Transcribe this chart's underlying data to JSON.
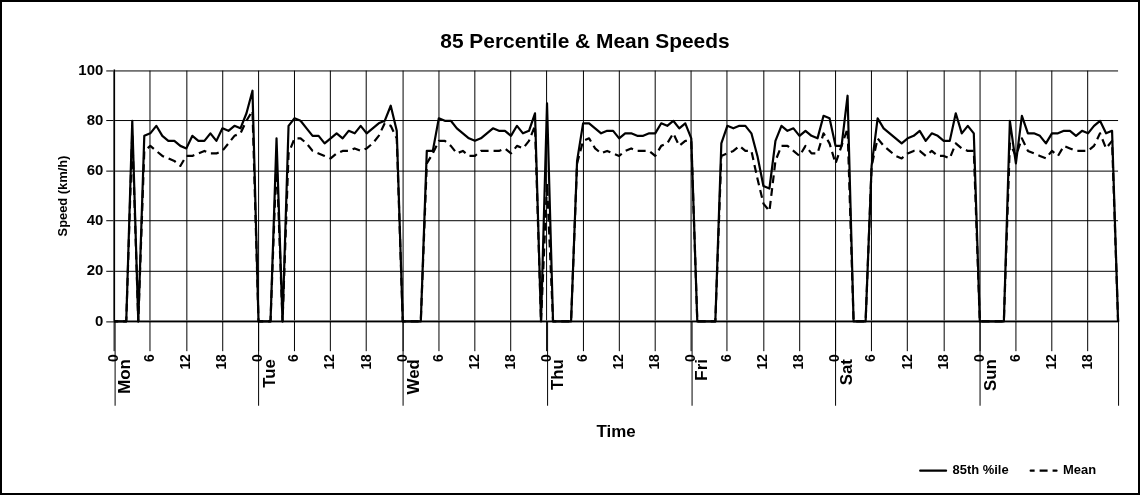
{
  "chart_data": {
    "type": "line",
    "title": "85 Percentile & Mean Speeds",
    "xlabel": "Time",
    "ylabel": "Speed (km/h)",
    "categories": [
      "0",
      null,
      null,
      null,
      null,
      null,
      "6",
      null,
      null,
      null,
      null,
      null,
      "12",
      null,
      null,
      null,
      null,
      null,
      "18",
      null,
      null,
      null,
      null,
      null,
      "0",
      null,
      null,
      null,
      null,
      null,
      "6",
      null,
      null,
      null,
      null,
      null,
      "12",
      null,
      null,
      null,
      null,
      null,
      "18",
      null,
      null,
      null,
      null,
      null,
      "0",
      null,
      null,
      null,
      null,
      null,
      "6",
      null,
      null,
      null,
      null,
      null,
      "12",
      null,
      null,
      null,
      null,
      null,
      "18",
      null,
      null,
      null,
      null,
      null,
      "0",
      null,
      null,
      null,
      null,
      null,
      "6",
      null,
      null,
      null,
      null,
      null,
      "12",
      null,
      null,
      null,
      null,
      null,
      "18",
      null,
      null,
      null,
      null,
      null,
      "0",
      null,
      null,
      null,
      null,
      null,
      "6",
      null,
      null,
      null,
      null,
      null,
      "12",
      null,
      null,
      null,
      null,
      null,
      "18",
      null,
      null,
      null,
      null,
      null,
      "0",
      null,
      null,
      null,
      null,
      null,
      "6",
      null,
      null,
      null,
      null,
      null,
      "12",
      null,
      null,
      null,
      null,
      null,
      "18",
      null,
      null,
      null,
      null,
      null,
      "0",
      null,
      null,
      null,
      null,
      null,
      "6",
      null,
      null,
      null,
      null,
      null,
      "12",
      null,
      null,
      null,
      null,
      null,
      "18",
      null,
      null,
      null,
      null,
      null
    ],
    "series": [
      {
        "name": "85th %ile",
        "color": "#000000",
        "line_style": "solid",
        "values": [
          0,
          0,
          0,
          80,
          0,
          74,
          75,
          78,
          74,
          72,
          72,
          70,
          69,
          74,
          72,
          72,
          75,
          72,
          77,
          76,
          78,
          77,
          83,
          92,
          0,
          0,
          0,
          73,
          0,
          78,
          81,
          80,
          77,
          74,
          74,
          71,
          73,
          75,
          73,
          76,
          75,
          78,
          75,
          77,
          79,
          80,
          86,
          76,
          0,
          0,
          0,
          0,
          68,
          68,
          81,
          80,
          80,
          77,
          75,
          73,
          72,
          73,
          75,
          77,
          76,
          76,
          74,
          78,
          75,
          76,
          83,
          0,
          87,
          0,
          0,
          0,
          0,
          64,
          79,
          79,
          77,
          75,
          76,
          76,
          73,
          75,
          75,
          74,
          74,
          75,
          75,
          79,
          78,
          80,
          77,
          79,
          73,
          0,
          0,
          0,
          0,
          71,
          78,
          77,
          78,
          78,
          75,
          66,
          54,
          53,
          72,
          78,
          76,
          77,
          74,
          76,
          74,
          73,
          82,
          81,
          70,
          70,
          90,
          0,
          0,
          0,
          62,
          81,
          77,
          75,
          73,
          71,
          73,
          74,
          76,
          72,
          75,
          74,
          72,
          72,
          83,
          75,
          78,
          75,
          0,
          0,
          0,
          0,
          0,
          80,
          63,
          82,
          75,
          75,
          74,
          71,
          75,
          75,
          76,
          76,
          74,
          76,
          75,
          78,
          80,
          75,
          76,
          0
        ]
      },
      {
        "name": "Mean",
        "color": "#000000",
        "line_style": "dashed",
        "values": [
          0,
          0,
          0,
          75,
          0,
          68,
          70,
          68,
          66,
          65,
          64,
          62,
          66,
          66,
          67,
          68,
          67,
          67,
          68,
          71,
          74,
          75,
          80,
          84,
          0,
          0,
          0,
          65,
          0,
          67,
          73,
          73,
          71,
          68,
          67,
          66,
          65,
          67,
          68,
          68,
          69,
          68,
          69,
          71,
          74,
          79,
          78,
          73,
          0,
          0,
          0,
          0,
          63,
          67,
          72,
          72,
          70,
          67,
          68,
          66,
          66,
          68,
          68,
          68,
          68,
          69,
          67,
          70,
          69,
          72,
          78,
          0,
          55,
          0,
          0,
          0,
          0,
          63,
          72,
          73,
          69,
          67,
          68,
          67,
          66,
          68,
          69,
          68,
          68,
          68,
          66,
          70,
          71,
          75,
          70,
          72,
          72,
          0,
          0,
          0,
          0,
          66,
          67,
          68,
          70,
          68,
          68,
          57,
          47,
          44,
          64,
          70,
          70,
          68,
          66,
          70,
          67,
          67,
          75,
          71,
          63,
          70,
          77,
          0,
          0,
          0,
          62,
          73,
          70,
          68,
          66,
          65,
          67,
          68,
          68,
          66,
          68,
          66,
          66,
          65,
          71,
          69,
          68,
          68,
          0,
          0,
          0,
          0,
          0,
          71,
          66,
          73,
          68,
          67,
          66,
          65,
          68,
          66,
          70,
          69,
          68,
          68,
          68,
          70,
          75,
          69,
          72,
          0
        ]
      }
    ],
    "annotations": [
      "Mon",
      "Tue",
      "Wed",
      "Thu",
      "Fri",
      "Sat",
      "Sun"
    ],
    "ylim": [
      0,
      100
    ],
    "yticks": [
      0,
      20,
      40,
      60,
      80,
      100
    ],
    "grid": true,
    "legend": "bottom right",
    "marker": "none"
  }
}
